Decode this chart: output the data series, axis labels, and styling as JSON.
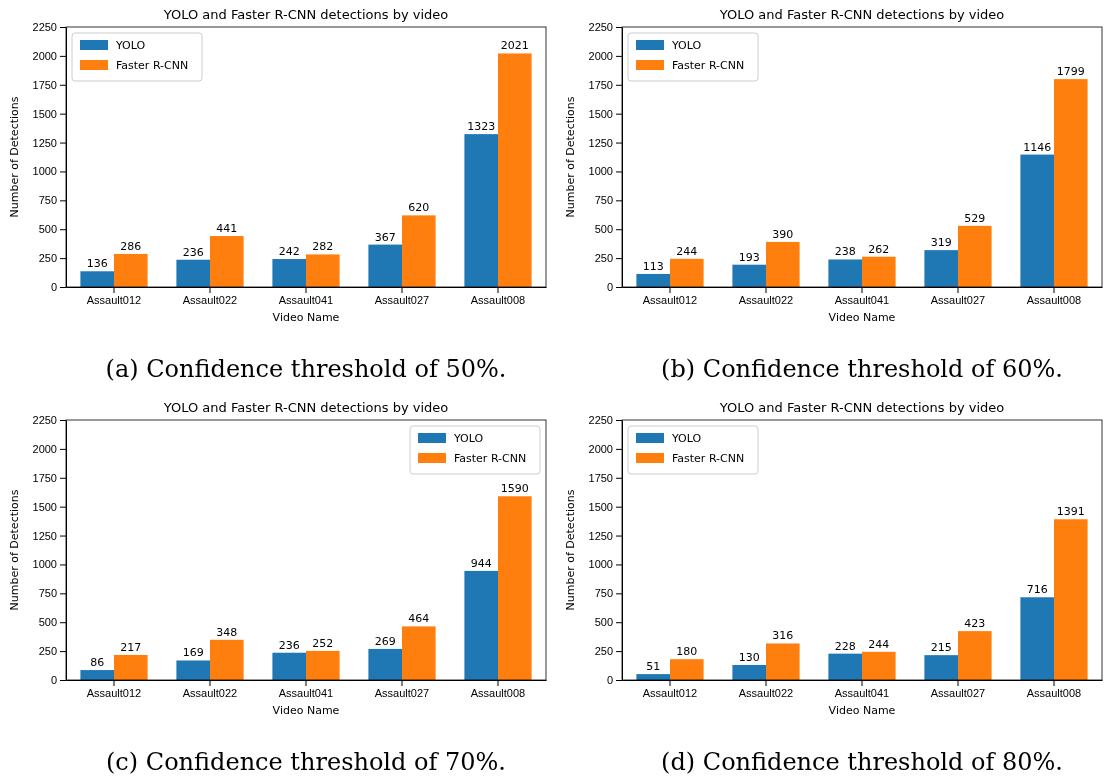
{
  "chart_data": [
    {
      "type": "bar",
      "title": "YOLO and Faster R-CNN detections by video",
      "xlabel": "Video Name",
      "ylabel": "Number of Detections",
      "categories": [
        "Assault012",
        "Assault022",
        "Assault041",
        "Assault027",
        "Assault008"
      ],
      "series": [
        {
          "name": "YOLO",
          "color": "#1f77b4",
          "values": [
            136,
            236,
            242,
            367,
            1323
          ]
        },
        {
          "name": "Faster R-CNN",
          "color": "#ff7f0e",
          "values": [
            286,
            441,
            282,
            620,
            2021
          ]
        }
      ],
      "ylim": [
        0,
        2250
      ],
      "yticks": [
        0,
        250,
        500,
        750,
        1000,
        1250,
        1500,
        1750,
        2000,
        2250
      ],
      "data_labels": true,
      "legend": "top left",
      "annotations": [
        "(a) Confidence threshold of 50%."
      ]
    },
    {
      "type": "bar",
      "title": "YOLO and Faster R-CNN detections by video",
      "xlabel": "Video Name",
      "ylabel": "Number of Detections",
      "categories": [
        "Assault012",
        "Assault022",
        "Assault041",
        "Assault027",
        "Assault008"
      ],
      "series": [
        {
          "name": "YOLO",
          "color": "#1f77b4",
          "values": [
            113,
            193,
            238,
            319,
            1146
          ]
        },
        {
          "name": "Faster R-CNN",
          "color": "#ff7f0e",
          "values": [
            244,
            390,
            262,
            529,
            1799
          ]
        }
      ],
      "ylim": [
        0,
        2250
      ],
      "yticks": [
        0,
        250,
        500,
        750,
        1000,
        1250,
        1500,
        1750,
        2000,
        2250
      ],
      "data_labels": true,
      "legend": "top left",
      "annotations": [
        "(b) Confidence threshold of 60%."
      ]
    },
    {
      "type": "bar",
      "title": "YOLO and Faster R-CNN detections by video",
      "xlabel": "Video Name",
      "ylabel": "Number of Detections",
      "categories": [
        "Assault012",
        "Assault022",
        "Assault041",
        "Assault027",
        "Assault008"
      ],
      "series": [
        {
          "name": "YOLO",
          "color": "#1f77b4",
          "values": [
            86,
            169,
            236,
            269,
            944
          ]
        },
        {
          "name": "Faster R-CNN",
          "color": "#ff7f0e",
          "values": [
            217,
            348,
            252,
            464,
            1590
          ]
        }
      ],
      "ylim": [
        0,
        2250
      ],
      "yticks": [
        0,
        250,
        500,
        750,
        1000,
        1250,
        1500,
        1750,
        2000,
        2250
      ],
      "data_labels": true,
      "legend": "top right",
      "annotations": [
        "(c) Confidence threshold of 70%."
      ]
    },
    {
      "type": "bar",
      "title": "YOLO and Faster R-CNN detections by video",
      "xlabel": "Video Name",
      "ylabel": "Number of Detections",
      "categories": [
        "Assault012",
        "Assault022",
        "Assault041",
        "Assault027",
        "Assault008"
      ],
      "series": [
        {
          "name": "YOLO",
          "color": "#1f77b4",
          "values": [
            51,
            130,
            228,
            215,
            716
          ]
        },
        {
          "name": "Faster R-CNN",
          "color": "#ff7f0e",
          "values": [
            180,
            316,
            244,
            423,
            1391
          ]
        }
      ],
      "ylim": [
        0,
        2250
      ],
      "yticks": [
        0,
        250,
        500,
        750,
        1000,
        1250,
        1500,
        1750,
        2000,
        2250
      ],
      "data_labels": true,
      "legend": "top left",
      "annotations": [
        "(d) Confidence threshold of 80%."
      ]
    }
  ]
}
